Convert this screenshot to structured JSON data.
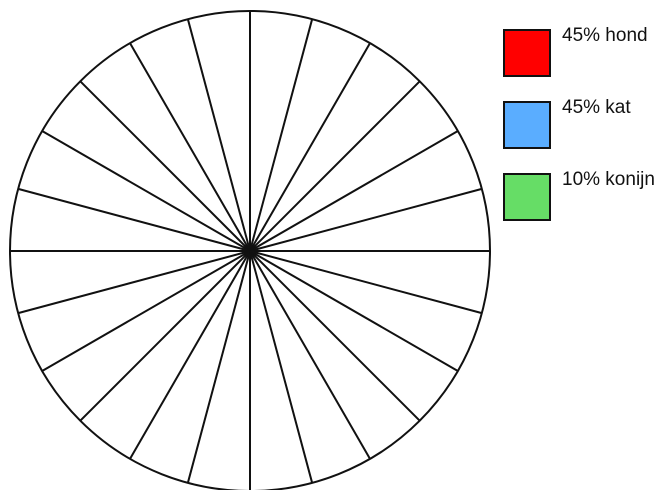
{
  "diagram": {
    "type": "blank-pie-template",
    "segments": 24,
    "line_color": "#111111",
    "fill_color": "#ffffff"
  },
  "legend": [
    {
      "label": "45% hond",
      "color": "#ff0000"
    },
    {
      "label": "45% kat",
      "color": "#5aadff"
    },
    {
      "label": "10% konijn",
      "color": "#66dd66"
    }
  ]
}
